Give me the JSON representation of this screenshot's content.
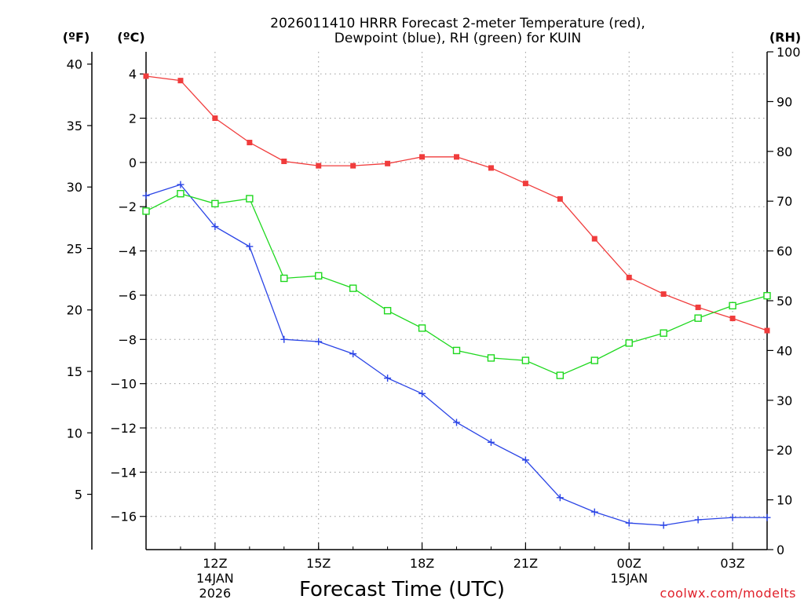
{
  "chart_data": {
    "type": "line",
    "title_line1": "2026011410 HRRR Forecast 2-meter Temperature (red),",
    "title_line2": "Dewpoint (blue), RH (green) for KUIN",
    "unit_f": "(ºF)",
    "unit_c": "(ºC)",
    "unit_rh": "(RH)",
    "xlabel": "Forecast Time (UTC)",
    "credit": "coolwx.com/modelts",
    "x_hours": [
      10,
      11,
      12,
      13,
      14,
      15,
      16,
      17,
      18,
      19,
      20,
      21,
      22,
      23,
      24,
      25,
      26,
      27,
      28
    ],
    "xlim": [
      10,
      28
    ],
    "ylim_c": [
      -17.5,
      5
    ],
    "ylim_rh": [
      0,
      100
    ],
    "y_ticks_c": [
      "4",
      "2",
      "0",
      "−2",
      "−4",
      "−6",
      "−8",
      "−10",
      "−12",
      "−14",
      "−16"
    ],
    "y_ticks_c_values": [
      4,
      2,
      0,
      -2,
      -4,
      -6,
      -8,
      -10,
      -12,
      -14,
      -16
    ],
    "y_ticks_f": [
      "40",
      "35",
      "30",
      "25",
      "20",
      "15",
      "10",
      "5"
    ],
    "y_ticks_f_values": [
      40,
      35,
      30,
      25,
      20,
      15,
      10,
      5
    ],
    "y_ticks_rh": [
      "100",
      "90",
      "80",
      "70",
      "60",
      "50",
      "40",
      "30",
      "20",
      "10",
      "0"
    ],
    "y_ticks_rh_values": [
      100,
      90,
      80,
      70,
      60,
      50,
      40,
      30,
      20,
      10,
      0
    ],
    "x_ticks": [
      {
        "hour": 12,
        "lines": [
          "12Z",
          "14JAN",
          "2026"
        ]
      },
      {
        "hour": 15,
        "lines": [
          "15Z"
        ]
      },
      {
        "hour": 18,
        "lines": [
          "18Z"
        ]
      },
      {
        "hour": 21,
        "lines": [
          "21Z"
        ]
      },
      {
        "hour": 24,
        "lines": [
          "00Z",
          "15JAN"
        ]
      },
      {
        "hour": 27,
        "lines": [
          "03Z"
        ]
      }
    ],
    "series": [
      {
        "name": "Temperature",
        "axis": "c",
        "color": "#f03c3c",
        "marker": "filled-square",
        "values": [
          3.9,
          3.7,
          2.0,
          0.9,
          0.05,
          -0.15,
          -0.15,
          -0.05,
          0.25,
          0.25,
          -0.25,
          -0.95,
          -1.65,
          -3.45,
          -5.2,
          -5.95,
          -6.55,
          -7.05,
          -7.6
        ]
      },
      {
        "name": "Dewpoint",
        "axis": "c",
        "color": "#2a44e6",
        "marker": "plus",
        "values": [
          -1.5,
          -1.0,
          -2.9,
          -3.8,
          -8.0,
          -8.1,
          -8.65,
          -9.75,
          -10.45,
          -11.75,
          -12.65,
          -13.45,
          -15.15,
          -15.8,
          -16.3,
          -16.4,
          -16.15,
          -16.05,
          -16.05
        ]
      },
      {
        "name": "RH",
        "axis": "rh",
        "color": "#1ed81e",
        "marker": "open-square",
        "values": [
          68,
          71.5,
          69.5,
          70.5,
          54.5,
          55,
          52.5,
          48,
          44.5,
          40,
          38.5,
          38,
          35,
          38,
          41.5,
          43.5,
          46.5,
          49,
          51
        ]
      }
    ]
  }
}
